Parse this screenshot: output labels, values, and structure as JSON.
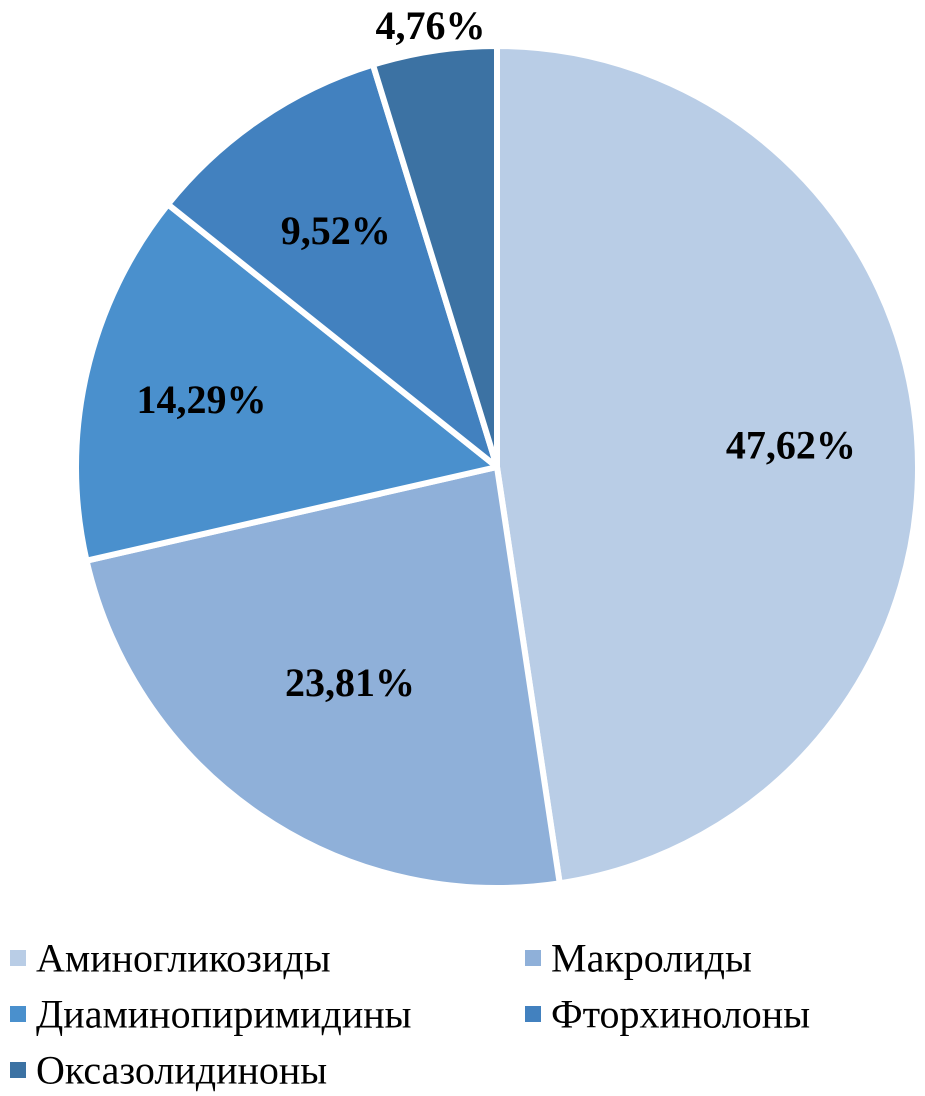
{
  "chart_data": {
    "type": "pie",
    "categories": [
      "Аминогликозиды",
      "Макролиды",
      "Диаминопиримидины",
      "Фторхинолоны",
      "Оксазолидиноны"
    ],
    "values": [
      47.62,
      23.81,
      14.29,
      9.52,
      4.76
    ],
    "labels": [
      "47,62%",
      "23,81%",
      "14,29%",
      "9,52%",
      "4,76%"
    ],
    "colors": [
      "#b9cde6",
      "#8fb0d9",
      "#4a90cd",
      "#4281bf",
      "#3c72a3"
    ],
    "title": "",
    "legend_position": "bottom",
    "start_angle": "12 o'clock",
    "direction": "clockwise"
  }
}
